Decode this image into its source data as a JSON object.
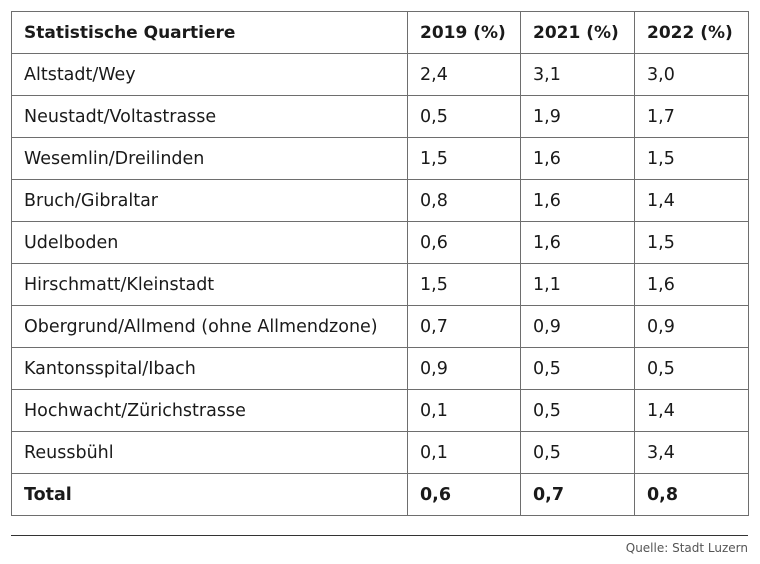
{
  "table": {
    "headers": [
      "Statistische Quartiere",
      "2019 (%)",
      "2021 (%)",
      "2022 (%)"
    ],
    "rows": [
      [
        "Altstadt/Wey",
        "2,4",
        "3,1",
        "3,0"
      ],
      [
        "Neustadt/Voltastrasse",
        "0,5",
        "1,9",
        "1,7"
      ],
      [
        "Wesemlin/Dreilinden",
        "1,5",
        "1,6",
        "1,5"
      ],
      [
        "Bruch/Gibraltar",
        "0,8",
        "1,6",
        "1,4"
      ],
      [
        "Udelboden",
        "0,6",
        "1,6",
        "1,5"
      ],
      [
        "Hirschmatt/Kleinstadt",
        "1,5",
        "1,1",
        "1,6"
      ],
      [
        "Obergrund/Allmend (ohne Allmendzone)",
        "0,7",
        "0,9",
        "0,9"
      ],
      [
        "Kantonsspital/Ibach",
        "0,9",
        "0,5",
        "0,5"
      ],
      [
        "Hochwacht/Zürichstrasse",
        "0,1",
        "0,5",
        "1,4"
      ],
      [
        "Reussbühl",
        "0,1",
        "0,5",
        "3,4"
      ]
    ],
    "total": [
      "Total",
      "0,6",
      "0,7",
      "0,8"
    ]
  },
  "source": "Quelle: Stadt Luzern"
}
